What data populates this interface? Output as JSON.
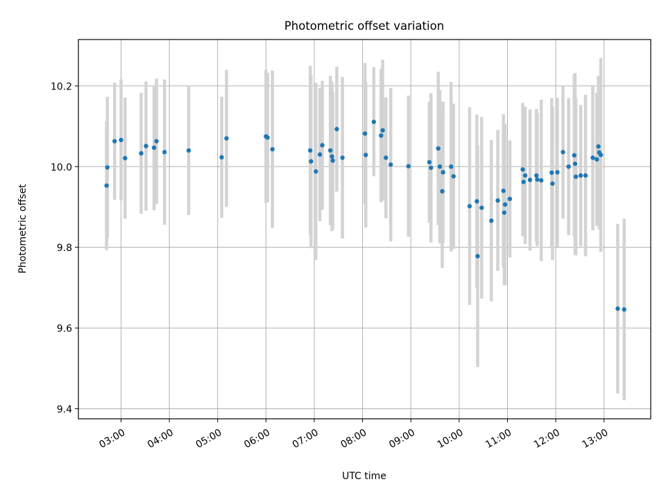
{
  "chart_data": {
    "type": "scatter",
    "title": "Photometric offset variation",
    "xlabel": "UTC time",
    "ylabel": "Photometric offset",
    "xlim": [
      "02:07",
      "13:58"
    ],
    "ylim": [
      9.375,
      10.315
    ],
    "grid": true,
    "xticks": [
      "03:00",
      "04:00",
      "05:00",
      "06:00",
      "07:00",
      "08:00",
      "09:00",
      "10:00",
      "11:00",
      "12:00",
      "13:00"
    ],
    "yticks": [
      "9.4",
      "9.6",
      "9.8",
      "10.0",
      "10.2"
    ],
    "colors": {
      "points": "#1f77b4",
      "errorbars": "#d3d3d3",
      "grid": "#b0b0b0"
    },
    "series": [
      {
        "x": [
          "02:42",
          "02:43",
          "02:52",
          "03:00",
          "03:05",
          "03:25",
          "03:31",
          "03:41",
          "03:44",
          "03:54",
          "04:24",
          "05:05",
          "05:11",
          "06:00",
          "06:02",
          "06:08",
          "06:55",
          "06:56",
          "07:02",
          "07:07",
          "07:10",
          "07:20",
          "07:22",
          "07:23",
          "07:28",
          "07:35",
          "08:03",
          "08:04",
          "08:14",
          "08:23",
          "08:25",
          "08:29",
          "08:35",
          "08:57",
          "09:23",
          "09:25",
          "09:34",
          "09:36",
          "09:39",
          "09:40",
          "09:50",
          "09:53",
          "10:13",
          "10:22",
          "10:23",
          "10:28",
          "10:40",
          "10:48",
          "10:55",
          "10:56",
          "10:57",
          "11:03",
          "11:19",
          "11:20",
          "11:22",
          "11:28",
          "11:36",
          "11:37",
          "11:42",
          "11:55",
          "11:56",
          "12:02",
          "12:09",
          "12:16",
          "12:23",
          "12:24",
          "12:25",
          "12:31",
          "12:37",
          "12:46",
          "12:51",
          "12:53",
          "12:54",
          "12:56",
          "13:17",
          "13:25"
        ],
        "y": [
          9.953,
          9.998,
          10.063,
          10.066,
          10.021,
          10.033,
          10.051,
          10.047,
          10.063,
          10.036,
          10.04,
          10.023,
          10.07,
          10.075,
          10.072,
          10.043,
          10.04,
          10.013,
          9.988,
          10.03,
          10.053,
          10.04,
          10.025,
          10.015,
          10.093,
          10.022,
          10.082,
          10.029,
          10.111,
          10.077,
          10.09,
          10.022,
          10.005,
          10.001,
          10.011,
          9.997,
          10.045,
          10.0,
          9.939,
          9.986,
          10.0,
          9.976,
          9.902,
          9.914,
          9.778,
          9.898,
          9.866,
          9.916,
          9.94,
          9.886,
          9.906,
          9.92,
          9.993,
          9.962,
          9.978,
          9.967,
          9.978,
          9.968,
          9.966,
          9.985,
          9.958,
          9.986,
          10.036,
          10.0,
          10.028,
          10.007,
          9.975,
          9.978,
          9.978,
          10.022,
          10.018,
          10.05,
          10.035,
          10.029,
          9.648,
          9.646
        ],
        "yerr": [
          0.16,
          0.175,
          0.145,
          0.15,
          0.15,
          0.15,
          0.16,
          0.155,
          0.155,
          0.18,
          0.16,
          0.15,
          0.17,
          0.165,
          0.16,
          0.195,
          0.21,
          0.215,
          0.22,
          0.165,
          0.16,
          0.185,
          0.185,
          0.17,
          0.155,
          0.2,
          0.175,
          0.18,
          0.135,
          0.165,
          0.175,
          0.15,
          0.19,
          0.175,
          0.15,
          0.185,
          0.19,
          0.19,
          0.19,
          0.175,
          0.21,
          0.18,
          0.245,
          0.215,
          0.275,
          0.225,
          0.2,
          0.175,
          0.19,
          0.18,
          0.2,
          0.145,
          0.165,
          0.135,
          0.17,
          0.175,
          0.165,
          0.165,
          0.2,
          0.185,
          0.19,
          0.185,
          0.165,
          0.17,
          0.2,
          0.225,
          0.195,
          0.175,
          0.2,
          0.18,
          0.165,
          0.175,
          0.19,
          0.24,
          0.21,
          0.225
        ]
      }
    ]
  }
}
